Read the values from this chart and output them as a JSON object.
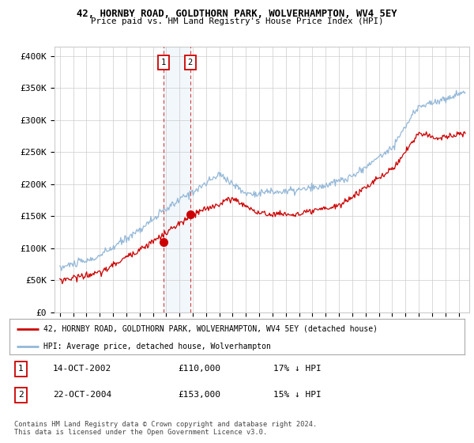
{
  "title1": "42, HORNBY ROAD, GOLDTHORN PARK, WOLVERHAMPTON, WV4 5EY",
  "title2": "Price paid vs. HM Land Registry's House Price Index (HPI)",
  "yticks": [
    0,
    50000,
    100000,
    150000,
    200000,
    250000,
    300000,
    350000,
    400000
  ],
  "ytick_labels": [
    "£0",
    "£50K",
    "£100K",
    "£150K",
    "£200K",
    "£250K",
    "£300K",
    "£350K",
    "£400K"
  ],
  "ylim": [
    0,
    415000
  ],
  "hpi_color": "#94b8d8",
  "sale_color": "#cc0000",
  "marker1_date_x": 2002.79,
  "marker1_y": 110000,
  "marker2_date_x": 2004.81,
  "marker2_y": 153000,
  "marker1_label": "1",
  "marker2_label": "2",
  "legend_sale": "42, HORNBY ROAD, GOLDTHORN PARK, WOLVERHAMPTON, WV4 5EY (detached house)",
  "legend_hpi": "HPI: Average price, detached house, Wolverhampton",
  "table_rows": [
    [
      "1",
      "14-OCT-2002",
      "£110,000",
      "17% ↓ HPI"
    ],
    [
      "2",
      "22-OCT-2004",
      "£153,000",
      "15% ↓ HPI"
    ]
  ],
  "footnote": "Contains HM Land Registry data © Crown copyright and database right 2024.\nThis data is licensed under the Open Government Licence v3.0.",
  "bg_color": "#ffffff",
  "grid_color": "#cccccc",
  "vline1_x": 2002.79,
  "vline2_x": 2004.81,
  "xlim_start": 1994.6,
  "xlim_end": 2025.8,
  "years_start": 1995,
  "years_end": 2025
}
